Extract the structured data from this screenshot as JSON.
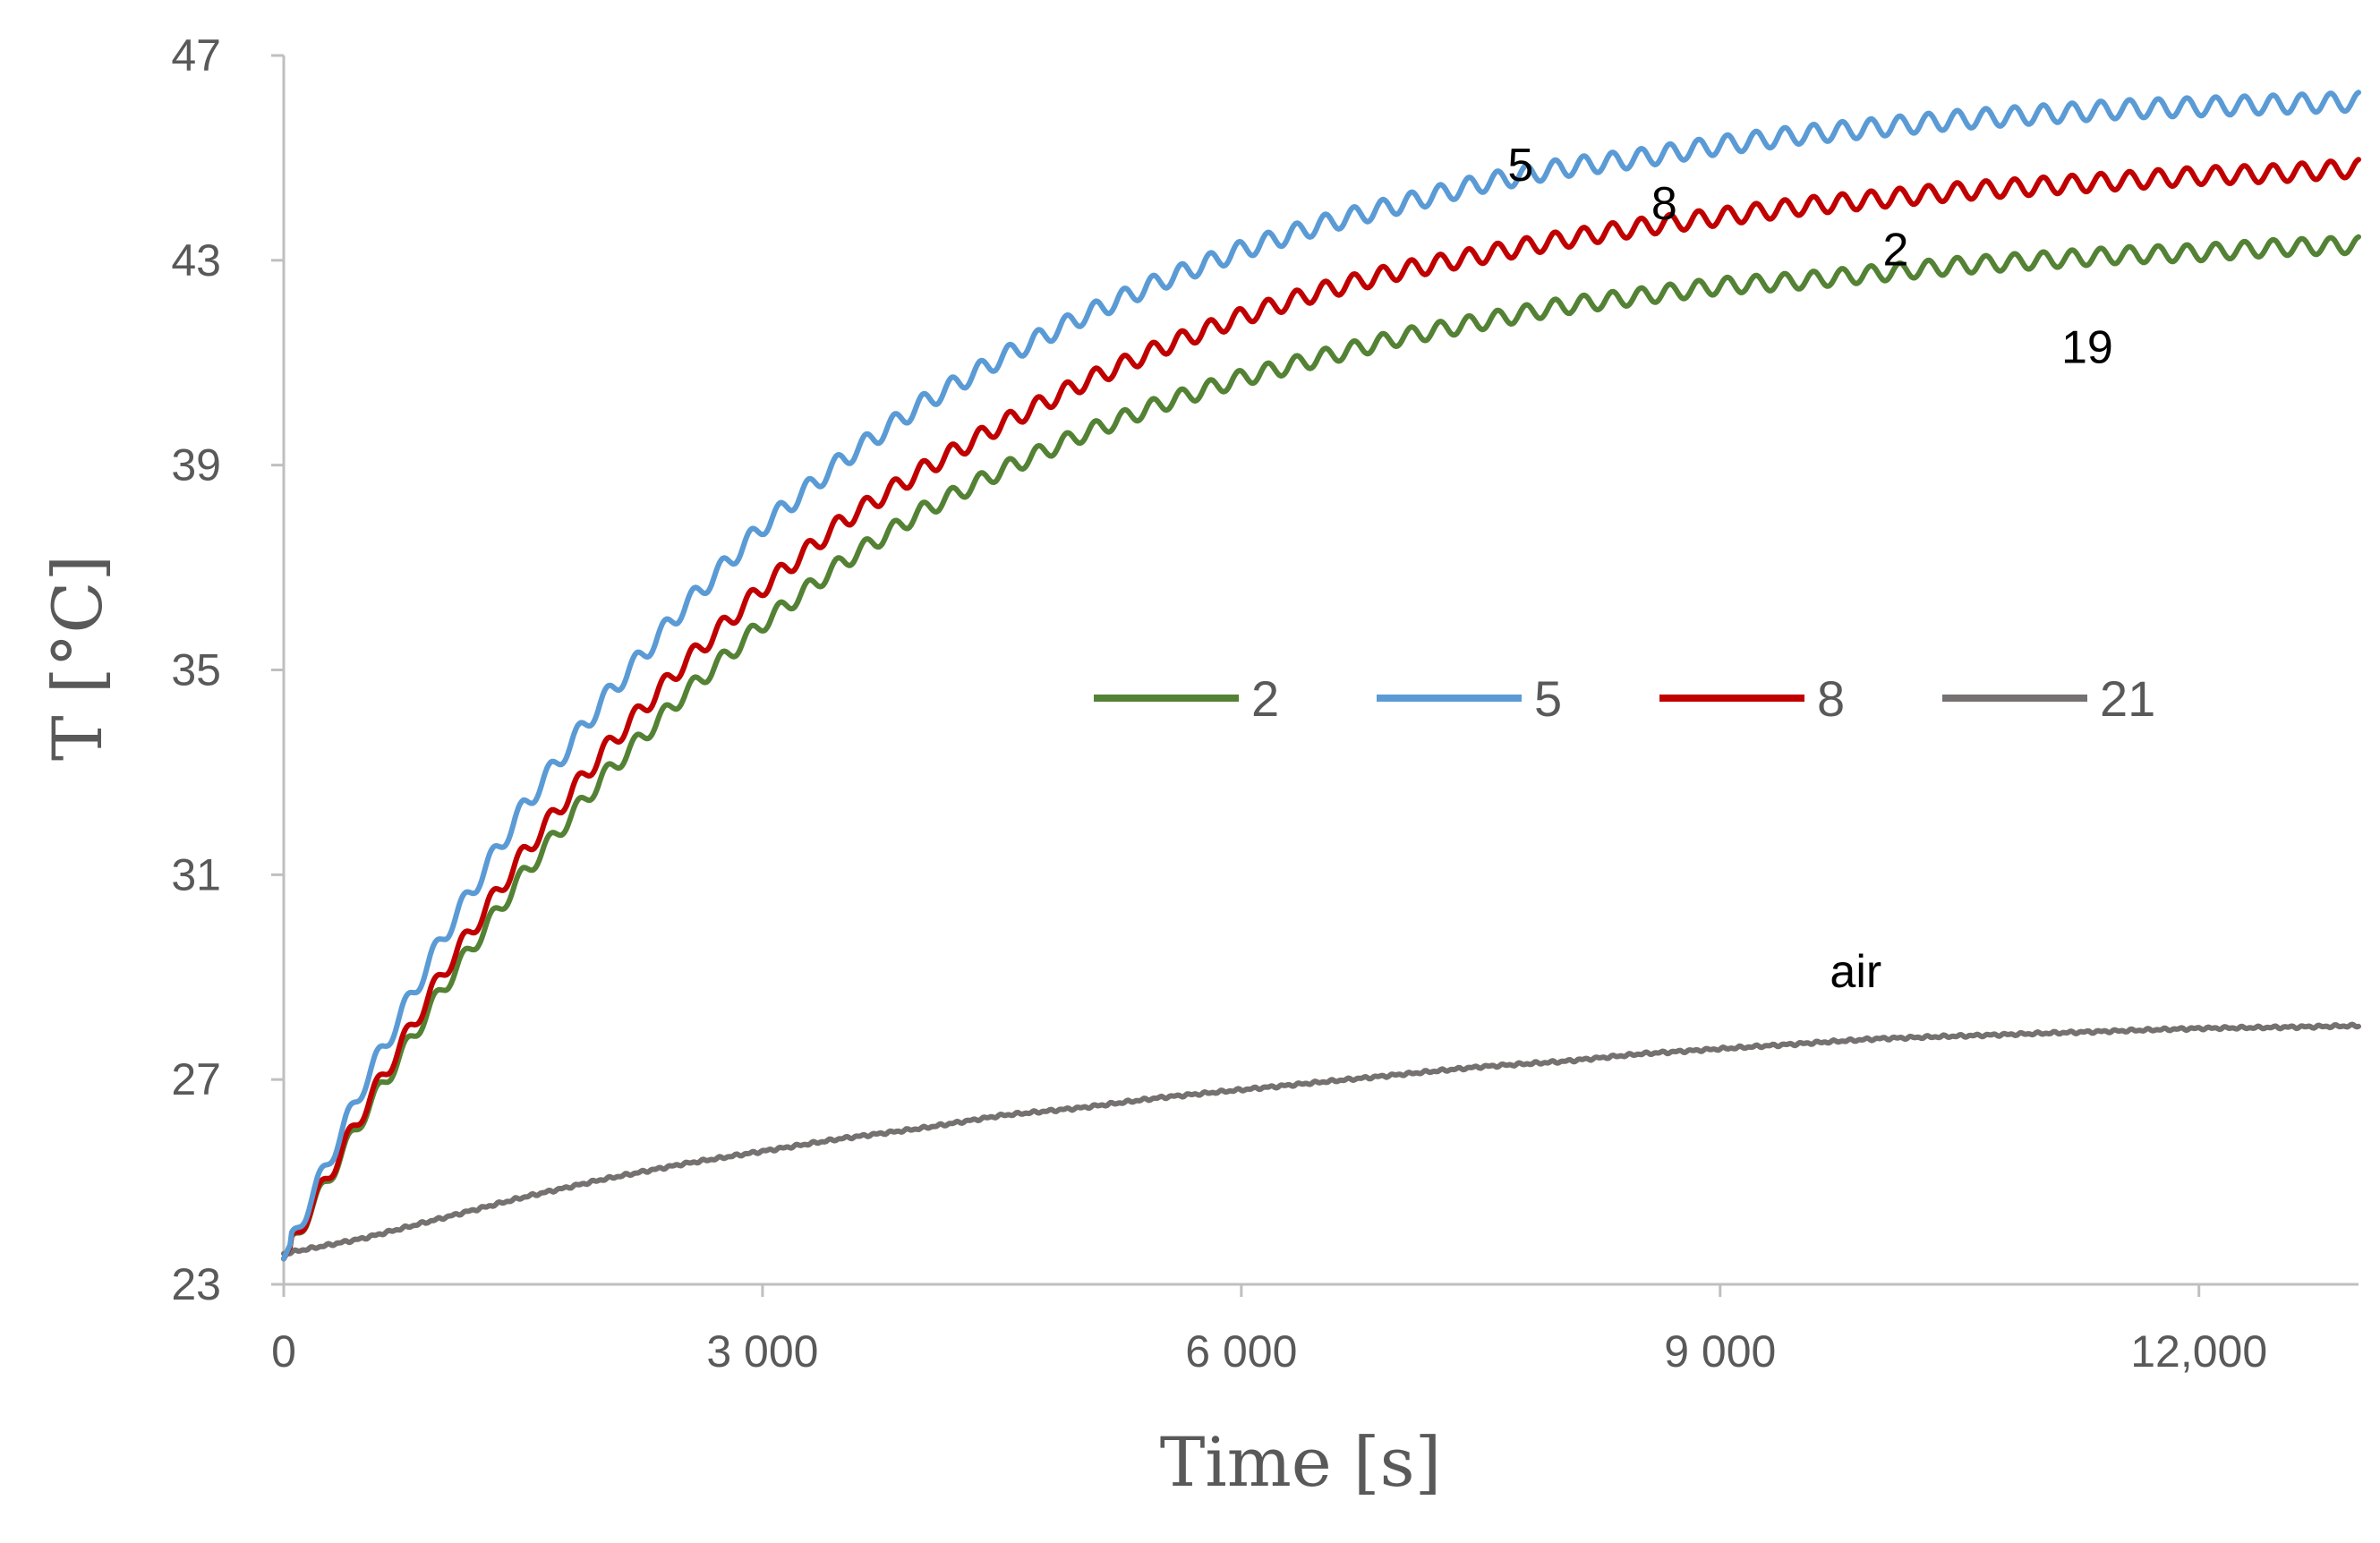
{
  "chart_data": {
    "type": "line",
    "title": "",
    "xlabel": "Time [s]",
    "ylabel": "T [°C]",
    "xlim": [
      0,
      13000
    ],
    "ylim": [
      23,
      47
    ],
    "x_ticks": [
      0,
      3000,
      6000,
      9000,
      12000
    ],
    "x_tick_labels": [
      "0",
      "3 000",
      "6 000",
      "9 000",
      "12,000"
    ],
    "y_ticks": [
      23,
      27,
      31,
      35,
      39,
      43,
      47
    ],
    "y_tick_labels": [
      "23",
      "27",
      "31",
      "35",
      "39",
      "43",
      "47"
    ],
    "grid": false,
    "legend_position": "center-right",
    "x": [
      0,
      500,
      1000,
      1500,
      2000,
      2500,
      3000,
      3500,
      4000,
      4500,
      5000,
      5500,
      6000,
      6500,
      7000,
      7500,
      8000,
      8500,
      9000,
      9500,
      10000,
      10500,
      11000,
      11500,
      12000,
      12500,
      13000
    ],
    "series": [
      {
        "name": "2",
        "color": "#548235",
        "oscillation": 0.16,
        "values": [
          23.5,
          26.3,
          28.8,
          31.0,
          32.9,
          34.5,
          35.9,
          37.1,
          38.1,
          38.9,
          39.6,
          40.2,
          40.7,
          41.1,
          41.5,
          41.8,
          42.1,
          42.3,
          42.5,
          42.6,
          42.75,
          42.9,
          43.0,
          43.1,
          43.15,
          43.25,
          43.3
        ]
      },
      {
        "name": "5",
        "color": "#5B9BD5",
        "oscillation": 0.18,
        "values": [
          23.5,
          26.9,
          29.8,
          32.3,
          34.4,
          36.2,
          37.8,
          39.1,
          40.2,
          41.1,
          41.9,
          42.6,
          43.2,
          43.7,
          44.1,
          44.5,
          44.8,
          45.0,
          45.25,
          45.45,
          45.6,
          45.75,
          45.85,
          45.95,
          46.0,
          46.05,
          46.1
        ]
      },
      {
        "name": "8",
        "color": "#C00000",
        "oscillation": 0.17,
        "values": [
          23.5,
          26.4,
          29.1,
          31.4,
          33.4,
          35.1,
          36.6,
          37.9,
          38.9,
          39.8,
          40.6,
          41.3,
          41.9,
          42.4,
          42.8,
          43.1,
          43.4,
          43.65,
          43.85,
          44.05,
          44.2,
          44.35,
          44.45,
          44.55,
          44.65,
          44.7,
          44.8
        ]
      },
      {
        "name": "21",
        "color": "#767171",
        "oscillation": 0.0,
        "values": [
          23.6,
          23.9,
          24.3,
          24.7,
          25.05,
          25.35,
          25.6,
          25.85,
          26.05,
          26.3,
          26.45,
          26.65,
          26.8,
          26.95,
          27.1,
          27.25,
          27.35,
          27.5,
          27.6,
          27.7,
          27.8,
          27.85,
          27.9,
          27.95,
          28.0,
          28.02,
          28.05
        ]
      }
    ],
    "annotations": [
      {
        "text": "5",
        "x": 7750,
        "y": 44.55
      },
      {
        "text": "8",
        "x": 8650,
        "y": 43.8
      },
      {
        "text": "2",
        "x": 10100,
        "y": 42.9
      },
      {
        "text": "19",
        "x": 11300,
        "y": 41.0
      },
      {
        "text": "air",
        "x": 9850,
        "y": 28.8
      }
    ]
  }
}
